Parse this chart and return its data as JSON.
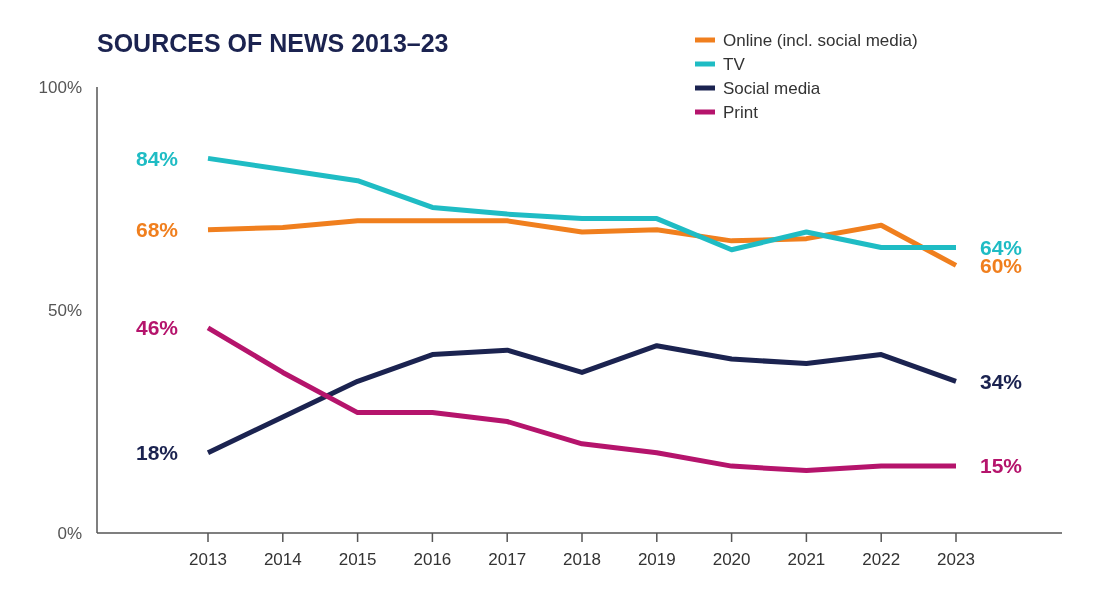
{
  "chart_data": {
    "type": "line",
    "title": "SOURCES OF NEWS 2013–23",
    "categories": [
      "2013",
      "2014",
      "2015",
      "2016",
      "2017",
      "2018",
      "2019",
      "2020",
      "2021",
      "2022",
      "2023"
    ],
    "series": [
      {
        "name": "Online (incl. social media)",
        "color": "#f07f1e",
        "values": [
          68,
          68.5,
          70,
          70,
          70,
          67.5,
          68,
          65.5,
          66,
          69,
          60
        ],
        "value_labels": [
          "68%",
          null,
          null,
          null,
          null,
          null,
          null,
          null,
          null,
          null,
          "60%"
        ]
      },
      {
        "name": "TV",
        "color": "#1fbcc4",
        "values": [
          84,
          81.5,
          79,
          73,
          71.5,
          70.5,
          70.5,
          63.5,
          67.5,
          64,
          64
        ],
        "value_labels": [
          "84%",
          null,
          null,
          null,
          null,
          null,
          null,
          null,
          null,
          null,
          "64%"
        ]
      },
      {
        "name": "Social media",
        "color": "#1b2350",
        "values": [
          18,
          26,
          34,
          40,
          41,
          36,
          42,
          39,
          38,
          40,
          34
        ],
        "value_labels": [
          "18%",
          null,
          null,
          null,
          null,
          null,
          null,
          null,
          null,
          null,
          "34%"
        ]
      },
      {
        "name": "Print",
        "color": "#b5146c",
        "values": [
          46,
          36,
          27,
          27,
          25,
          20,
          18,
          15,
          14,
          15,
          15
        ],
        "value_labels": [
          "46%",
          null,
          null,
          null,
          null,
          null,
          null,
          null,
          null,
          null,
          "15%"
        ]
      }
    ],
    "ylim": [
      0,
      100
    ],
    "yticks": [
      {
        "value": 0,
        "label": "0%"
      },
      {
        "value": 50,
        "label": "50%"
      },
      {
        "value": 100,
        "label": "100%"
      }
    ],
    "grid": false,
    "legend": "top right",
    "marker": "none",
    "line_style": "solid"
  }
}
